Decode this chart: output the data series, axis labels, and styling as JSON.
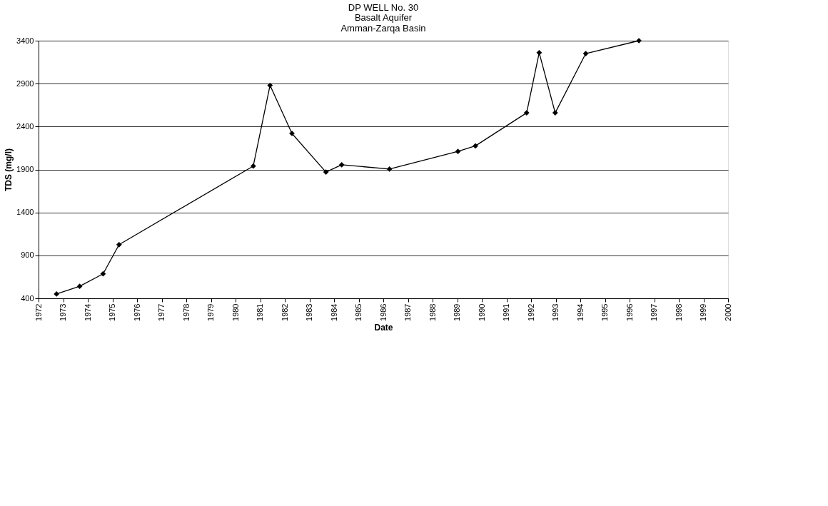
{
  "chart_data": {
    "type": "line",
    "title": "DP WELL No. 30",
    "subtitle": [
      "Basalt Aquifer",
      "Amman-Zarqa Basin"
    ],
    "xlabel": "Date",
    "ylabel": "TDS (mg/l)",
    "x": [
      1972.73,
      1973.67,
      1974.62,
      1975.27,
      1980.72,
      1981.4,
      1982.29,
      1983.67,
      1984.31,
      1986.25,
      1989.03,
      1989.74,
      1991.82,
      1992.33,
      1992.98,
      1994.22,
      1996.38
    ],
    "series": [
      {
        "color": "#000000",
        "values": [
          450,
          540,
          685,
          1025,
          1940,
          2880,
          2320,
          1870,
          1955,
          1905,
          2110,
          2175,
          2560,
          3260,
          2560,
          3250,
          3400
        ]
      }
    ],
    "xlim": [
      1972,
      2000
    ],
    "xticks": [
      1972,
      1973,
      1974,
      1975,
      1976,
      1977,
      1978,
      1979,
      1980,
      1981,
      1982,
      1983,
      1984,
      1985,
      1986,
      1987,
      1988,
      1989,
      1990,
      1991,
      1992,
      1993,
      1994,
      1995,
      1996,
      1997,
      1998,
      1999,
      2000
    ],
    "ylim": [
      400,
      3400
    ],
    "yticks": [
      400,
      900,
      1400,
      1900,
      2400,
      2900,
      3400
    ],
    "grid": "y",
    "marker": "diamond",
    "line_style": "solid"
  }
}
